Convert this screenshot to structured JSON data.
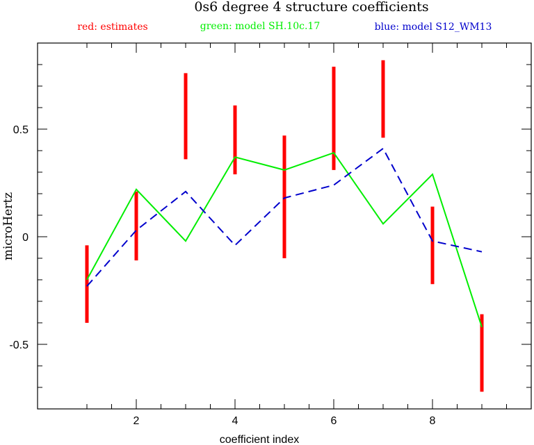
{
  "chart_data": {
    "type": "line",
    "title": "0s6 degree 4 structure coefficients",
    "xlabel": "coefficient index",
    "ylabel": "microHertz",
    "xlim": [
      0,
      10
    ],
    "ylim": [
      -0.8,
      0.9
    ],
    "x_ticks": [
      2,
      4,
      6,
      8
    ],
    "y_ticks": [
      -0.5,
      0,
      0.5
    ],
    "x_tick_labels": [
      "2",
      "4",
      "6",
      "8"
    ],
    "y_tick_labels": [
      "-0.5",
      "0",
      "0.5"
    ],
    "grid": false,
    "legend": [
      {
        "label": "red: estimates",
        "color": "#ff0000"
      },
      {
        "label": "green: model SH.10c.17",
        "color": "#00ee00"
      },
      {
        "label": "blue: model S12_WM13",
        "color": "#0000cc"
      }
    ],
    "series": [
      {
        "kind": "errorbar",
        "color": "#ff0000",
        "x": [
          1,
          2,
          3,
          4,
          5,
          6,
          7,
          8,
          9
        ],
        "low": [
          -0.4,
          -0.11,
          0.36,
          0.29,
          -0.1,
          0.31,
          0.46,
          -0.22,
          -0.72
        ],
        "high": [
          -0.04,
          0.21,
          0.76,
          0.61,
          0.47,
          0.79,
          0.82,
          0.14,
          -0.36
        ]
      },
      {
        "kind": "line",
        "style": "solid",
        "color": "#00ee00",
        "x": [
          1,
          2,
          3,
          4,
          5,
          6,
          7,
          8,
          9
        ],
        "y": [
          -0.2,
          0.22,
          -0.02,
          0.37,
          0.31,
          0.39,
          0.06,
          0.29,
          -0.42
        ]
      },
      {
        "kind": "line",
        "style": "dashed",
        "color": "#0000cc",
        "x": [
          1,
          2,
          3,
          4,
          5,
          6,
          7,
          8,
          9
        ],
        "y": [
          -0.23,
          0.03,
          0.21,
          -0.04,
          0.18,
          0.24,
          0.41,
          -0.02,
          -0.07
        ]
      }
    ]
  }
}
